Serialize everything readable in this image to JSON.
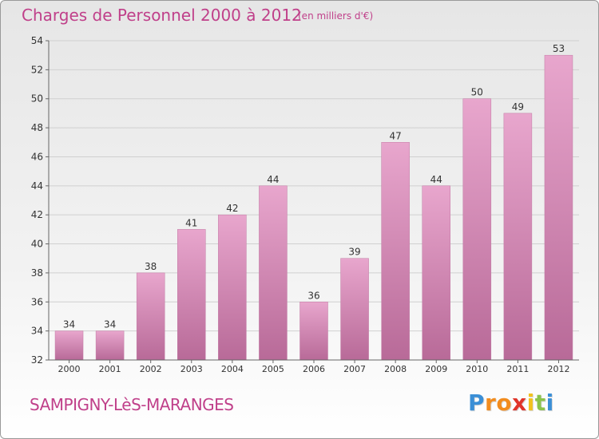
{
  "header": {
    "title": "Charges de Personnel 2000 à 2012",
    "subtitle": "(en milliers d'€)"
  },
  "footer": {
    "commune": "SAMPIGNY-LèS-MARANGES",
    "logo_letters": [
      "P",
      "r",
      "o",
      "x",
      "i",
      "t",
      "i"
    ],
    "logo_colors": [
      "#3b8fd6",
      "#f28c1e",
      "#f28c1e",
      "#e0342a",
      "#f2c21e",
      "#8bc34a",
      "#3b8fd6"
    ]
  },
  "chart_data": {
    "type": "bar",
    "title": "Charges de Personnel 2000 à 2012",
    "subtitle": "(en milliers d'€)",
    "categories": [
      "2000",
      "2001",
      "2002",
      "2003",
      "2004",
      "2005",
      "2006",
      "2007",
      "2008",
      "2009",
      "2010",
      "2011",
      "2012"
    ],
    "values": [
      34,
      34,
      38,
      41,
      42,
      44,
      36,
      39,
      47,
      44,
      50,
      49,
      53
    ],
    "ylim": [
      32,
      54
    ],
    "yticks": [
      32,
      34,
      36,
      38,
      40,
      42,
      44,
      46,
      48,
      50,
      52,
      54
    ],
    "grid": true,
    "bar_color": "#d98cb8",
    "data_labels": true
  }
}
